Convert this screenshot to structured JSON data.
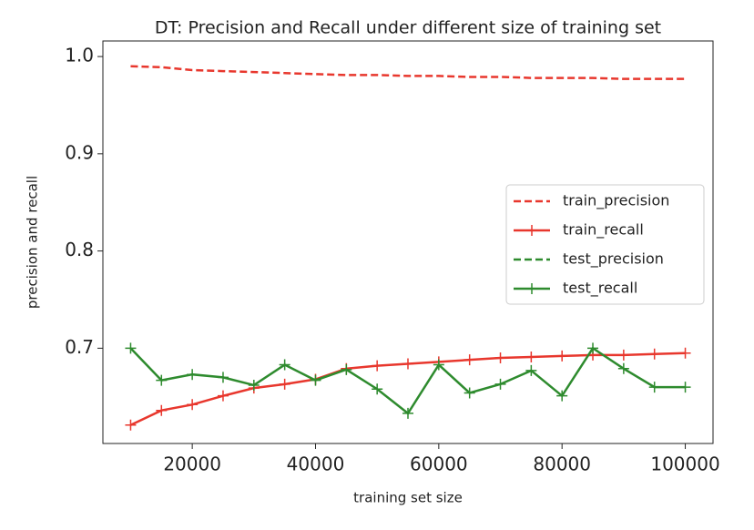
{
  "chart_data": {
    "type": "line",
    "title": "DT: Precision and Recall under different size of training set",
    "xlabel": "training set size",
    "ylabel": "precision and recall",
    "x": [
      10000,
      15000,
      20000,
      25000,
      30000,
      35000,
      40000,
      45000,
      50000,
      55000,
      60000,
      65000,
      70000,
      75000,
      80000,
      85000,
      90000,
      95000,
      100000
    ],
    "series": [
      {
        "name": "train_precision",
        "color": "#e8372d",
        "dash": true,
        "marker": false,
        "values": [
          0.99,
          0.989,
          0.986,
          0.985,
          0.984,
          0.983,
          0.982,
          0.981,
          0.981,
          0.98,
          0.98,
          0.979,
          0.979,
          0.978,
          0.978,
          0.978,
          0.977,
          0.977,
          0.977
        ]
      },
      {
        "name": "train_recall",
        "color": "#e8372d",
        "dash": false,
        "marker": true,
        "values": [
          0.621,
          0.636,
          0.642,
          0.651,
          0.659,
          0.663,
          0.668,
          0.679,
          0.682,
          0.684,
          0.686,
          0.688,
          0.69,
          0.691,
          0.692,
          0.693,
          0.693,
          0.694,
          0.695
        ]
      },
      {
        "name": "test_precision",
        "color": "#2e8b2e",
        "dash": true,
        "marker": false,
        "values": [
          null,
          null,
          null,
          null,
          null,
          null,
          null,
          null,
          null,
          null,
          null,
          null,
          null,
          null,
          null,
          null,
          null,
          null,
          null
        ]
      },
      {
        "name": "test_recall",
        "color": "#2e8b2e",
        "dash": false,
        "marker": true,
        "values": [
          0.7,
          0.667,
          0.673,
          0.67,
          0.662,
          0.683,
          0.667,
          0.678,
          0.658,
          0.633,
          0.683,
          0.654,
          0.663,
          0.677,
          0.651,
          0.7,
          0.679,
          0.66,
          0.66
        ]
      }
    ],
    "xlim": [
      5500,
      104500
    ],
    "ylim": [
      0.602,
      1.016
    ],
    "xticks": [
      20000,
      40000,
      60000,
      80000,
      100000
    ],
    "yticks": [
      0.7,
      0.8,
      0.9,
      {
        "value": 1.0,
        "label": "1.0"
      }
    ],
    "legend": "right"
  }
}
